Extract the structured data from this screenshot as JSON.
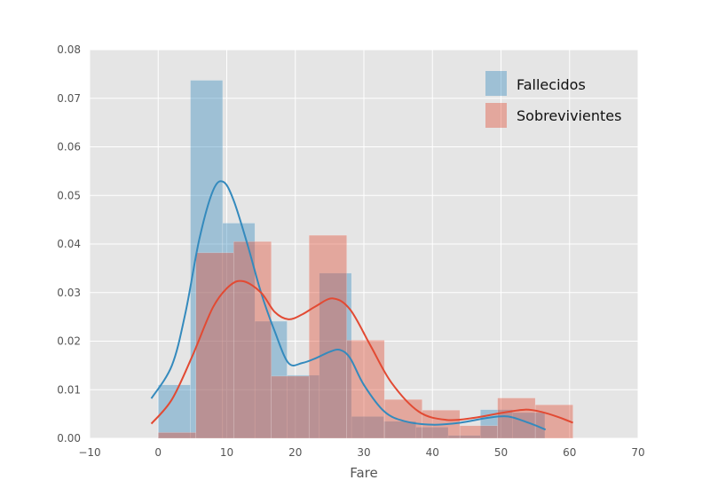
{
  "chart_data": {
    "type": "bar",
    "title": "",
    "xlabel": "Fare",
    "ylabel": "",
    "xlim": [
      -10,
      70
    ],
    "ylim": [
      0,
      0.08
    ],
    "grid": true,
    "legend_position": "top-right",
    "x_ticks": [
      "−10",
      "0",
      "10",
      "20",
      "30",
      "40",
      "50",
      "60",
      "70"
    ],
    "x_tick_values": [
      -10,
      0,
      10,
      20,
      30,
      40,
      50,
      60,
      70
    ],
    "y_ticks": [
      "0.00",
      "0.01",
      "0.02",
      "0.03",
      "0.04",
      "0.05",
      "0.06",
      "0.07",
      "0.08"
    ],
    "y_tick_values": [
      0,
      0.01,
      0.02,
      0.03,
      0.04,
      0.05,
      0.06,
      0.07,
      0.08
    ],
    "series": [
      {
        "name": "Fallecidos",
        "color": "#348abd",
        "bins": [
          {
            "x0": 0.0,
            "x1": 4.7,
            "value": 0.011
          },
          {
            "x0": 4.7,
            "x1": 9.4,
            "value": 0.0737
          },
          {
            "x0": 9.4,
            "x1": 14.1,
            "value": 0.0443
          },
          {
            "x0": 14.1,
            "x1": 18.8,
            "value": 0.0241
          },
          {
            "x0": 18.8,
            "x1": 23.5,
            "value": 0.013
          },
          {
            "x0": 23.5,
            "x1": 28.2,
            "value": 0.034
          },
          {
            "x0": 28.2,
            "x1": 32.9,
            "value": 0.0045
          },
          {
            "x0": 32.9,
            "x1": 37.6,
            "value": 0.0035
          },
          {
            "x0": 37.6,
            "x1": 42.3,
            "value": 0.0023
          },
          {
            "x0": 42.3,
            "x1": 47.0,
            "value": 0.0006
          },
          {
            "x0": 47.0,
            "x1": 51.7,
            "value": 0.0059
          },
          {
            "x0": 51.7,
            "x1": 56.4,
            "value": 0.0053
          }
        ],
        "kde": {
          "x": [
            -1.0,
            2.0,
            4.0,
            6.0,
            8.0,
            9.5,
            11.0,
            13.0,
            15.0,
            17.0,
            19.0,
            21.0,
            23.0,
            25.0,
            26.5,
            28.0,
            30.0,
            33.0,
            36.0,
            40.0,
            44.0,
            48.0,
            51.0,
            54.0,
            56.5
          ],
          "y": [
            0.0082,
            0.015,
            0.026,
            0.041,
            0.051,
            0.0528,
            0.049,
            0.04,
            0.03,
            0.022,
            0.0155,
            0.0155,
            0.0165,
            0.0178,
            0.0182,
            0.0165,
            0.011,
            0.0055,
            0.0035,
            0.0028,
            0.0032,
            0.0042,
            0.0045,
            0.0032,
            0.0018
          ]
        }
      },
      {
        "name": "Sobrevivientes",
        "color": "#e24a33",
        "bins": [
          {
            "x0": 0.0,
            "x1": 5.5,
            "value": 0.0012
          },
          {
            "x0": 5.5,
            "x1": 11.0,
            "value": 0.0382
          },
          {
            "x0": 11.0,
            "x1": 16.5,
            "value": 0.0405
          },
          {
            "x0": 16.5,
            "x1": 22.0,
            "value": 0.0128
          },
          {
            "x0": 22.0,
            "x1": 27.5,
            "value": 0.0418
          },
          {
            "x0": 27.5,
            "x1": 33.0,
            "value": 0.0202
          },
          {
            "x0": 33.0,
            "x1": 38.5,
            "value": 0.008
          },
          {
            "x0": 38.5,
            "x1": 44.0,
            "value": 0.0058
          },
          {
            "x0": 44.0,
            "x1": 49.5,
            "value": 0.0026
          },
          {
            "x0": 49.5,
            "x1": 55.0,
            "value": 0.0083
          },
          {
            "x0": 55.0,
            "x1": 60.5,
            "value": 0.0069
          }
        ],
        "kde": {
          "x": [
            -1.0,
            2.0,
            5.0,
            8.0,
            10.5,
            12.5,
            15.0,
            17.0,
            19.0,
            21.0,
            23.0,
            25.5,
            28.0,
            31.0,
            34.0,
            38.0,
            42.0,
            46.0,
            50.0,
            53.5,
            56.0,
            58.5,
            60.5
          ],
          "y": [
            0.003,
            0.008,
            0.017,
            0.027,
            0.0315,
            0.0323,
            0.03,
            0.026,
            0.0245,
            0.0255,
            0.0272,
            0.0288,
            0.0265,
            0.019,
            0.0115,
            0.0055,
            0.0038,
            0.0042,
            0.0052,
            0.0059,
            0.0054,
            0.0043,
            0.0032
          ]
        }
      }
    ]
  }
}
